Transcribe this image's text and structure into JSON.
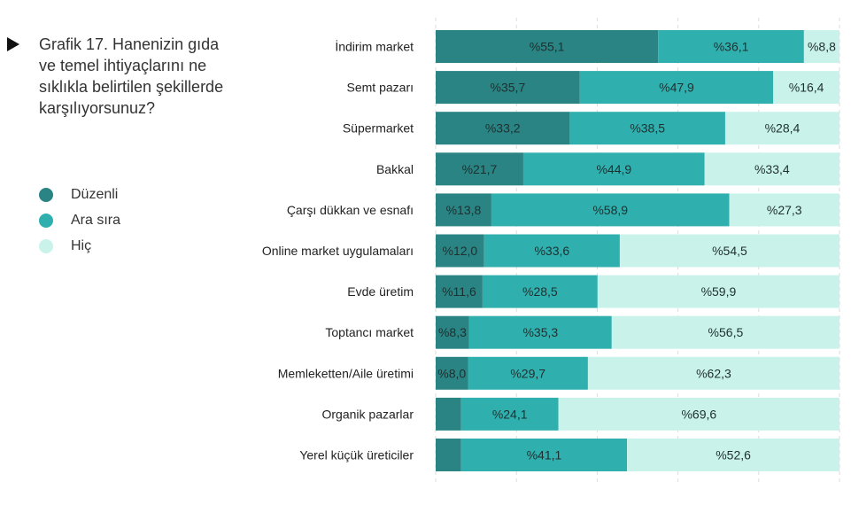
{
  "title": "Grafik 17. Hanenizin gıda ve temel ihtiyaçlarını ne sıklıkla belirtilen şekillerde karşılıyorsunuz?",
  "colors": {
    "duzenli": "#2a8484",
    "ara_sira": "#2fb0ae",
    "hic": "#c9f3ea"
  },
  "legend": [
    {
      "label": "Düzenli",
      "color": "#2a8484"
    },
    {
      "label": "Ara sıra",
      "color": "#2fb0ae"
    },
    {
      "label": "Hiç",
      "color": "#c9f3ea"
    }
  ],
  "chart_data": {
    "type": "bar",
    "orientation": "horizontal",
    "stacked": true,
    "title": "Grafik 17. Hanenizin gıda ve temel ihtiyaçlarını ne sıklıkla belirtilen şekillerde karşılıyorsunuz?",
    "categories": [
      "İndirim market",
      "Semt pazarı",
      "Süpermarket",
      "Bakkal",
      "Çarşı dükkan ve esnafı",
      "Online market uygulamaları",
      "Evde üretim",
      "Toptancı market",
      "Memleketten/Aile üretimi",
      "Organik pazarlar",
      "Yerel küçük üreticiler"
    ],
    "series": [
      {
        "name": "Düzenli",
        "values": [
          55.1,
          35.7,
          33.2,
          21.7,
          13.8,
          12.0,
          11.6,
          8.3,
          8.0,
          6.3,
          6.3
        ]
      },
      {
        "name": "Ara sıra",
        "values": [
          36.1,
          47.9,
          38.5,
          44.9,
          58.9,
          33.6,
          28.5,
          35.3,
          29.7,
          24.1,
          41.1
        ]
      },
      {
        "name": "Hiç",
        "values": [
          8.8,
          16.4,
          28.4,
          33.4,
          27.3,
          54.5,
          59.9,
          56.5,
          62.3,
          69.6,
          52.6
        ]
      }
    ],
    "labels": [
      [
        "%55,1",
        "%36,1",
        "%8,8"
      ],
      [
        "%35,7",
        "%47,9",
        "%16,4"
      ],
      [
        "%33,2",
        "%38,5",
        "%28,4"
      ],
      [
        "%21,7",
        "%44,9",
        "%33,4"
      ],
      [
        "%13,8",
        "%58,9",
        "%27,3"
      ],
      [
        "%12,0",
        "%33,6",
        "%54,5"
      ],
      [
        "%11,6",
        "%28,5",
        "%59,9"
      ],
      [
        "%8,3",
        "%35,3",
        "%56,5"
      ],
      [
        "%8,0",
        "%29,7",
        "%62,3"
      ],
      [
        "",
        "%24,1",
        "%69,6"
      ],
      [
        "",
        "%41,1",
        "%52,6"
      ]
    ],
    "xlim": [
      0,
      100
    ],
    "grid": true,
    "legend_position": "left"
  }
}
